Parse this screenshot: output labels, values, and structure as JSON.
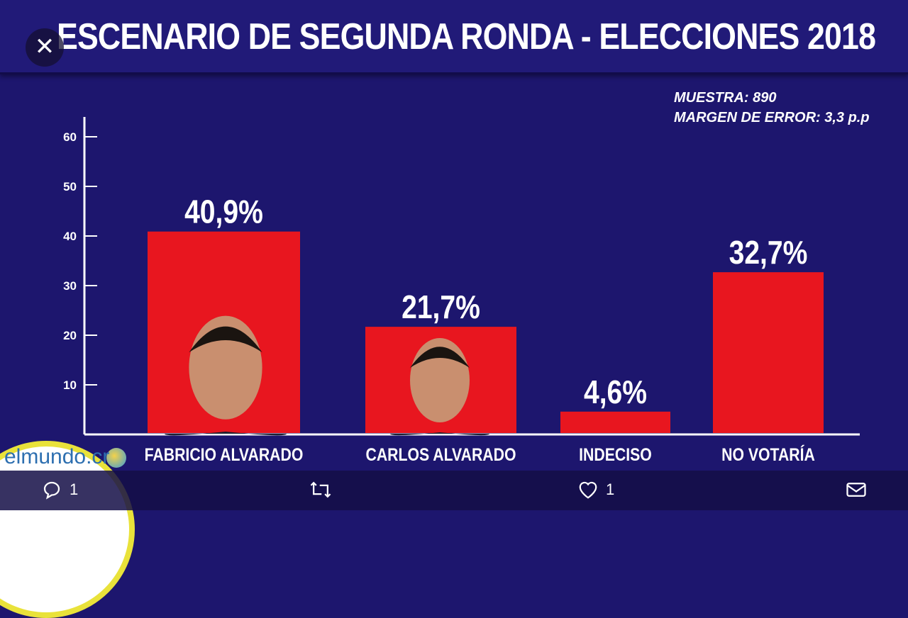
{
  "title": "ESCENARIO DE SEGUNDA RONDA - ELECCIONES 2018",
  "meta": {
    "muestra": "MUESTRA: 890",
    "margen": "MARGEN DE ERROR: 3,3 p.p"
  },
  "logo": "elmundo.cr",
  "actions": {
    "reply_count": "1",
    "like_count": "1"
  },
  "colors": {
    "background": "#1d166e",
    "bar": "#e8161f"
  },
  "chart_data": {
    "type": "bar",
    "title": "ESCENARIO DE SEGUNDA RONDA - ELECCIONES 2018",
    "categories": [
      "FABRICIO ALVARADO",
      "CARLOS ALVARADO",
      "INDECISO",
      "NO VOTARÍA"
    ],
    "values": [
      40.9,
      21.7,
      4.6,
      32.7
    ],
    "data_labels": [
      "40,9%",
      "21,7%",
      "4,6%",
      "32,7%"
    ],
    "yticks": [
      10,
      20,
      30,
      40,
      50,
      60
    ],
    "ylim": [
      0,
      60
    ],
    "grid": false
  }
}
